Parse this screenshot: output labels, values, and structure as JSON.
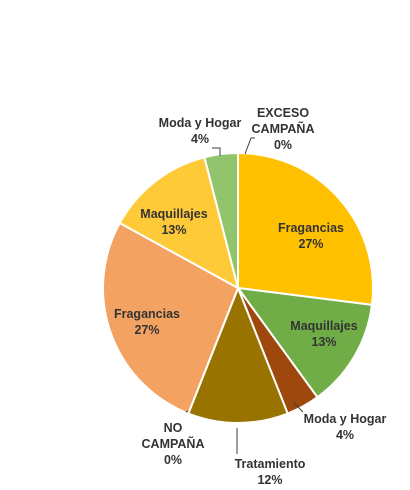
{
  "chart_data": {
    "type": "pie",
    "title": "",
    "slices": [
      {
        "label": "Fragancias",
        "value": 27,
        "display": "27%",
        "color": "#FFC000"
      },
      {
        "label": "Maquillajes",
        "value": 13,
        "display": "13%",
        "color": "#70AD47"
      },
      {
        "label": "Moda y Hogar",
        "value": 4,
        "display": "4%",
        "color": "#9E480E"
      },
      {
        "label": "Tratamiento",
        "value": 12,
        "display": "12%",
        "color": "#997300"
      },
      {
        "label": "NO CAMPAÑA",
        "value": 0,
        "display": "0%",
        "color": "#A5A5A5"
      },
      {
        "label": "Fragancias",
        "value": 27,
        "display": "27%",
        "color": "#F4A261"
      },
      {
        "label": "Maquillajes",
        "value": 13,
        "display": "13%",
        "color": "#FFCA38"
      },
      {
        "label": "Moda y Hogar",
        "value": 4,
        "display": "4%",
        "color": "#92C46E"
      },
      {
        "label": "EXCESO CAMPAÑA",
        "value": 0,
        "display": "0%",
        "color": "#5B9BD5"
      }
    ],
    "legend": "none"
  }
}
